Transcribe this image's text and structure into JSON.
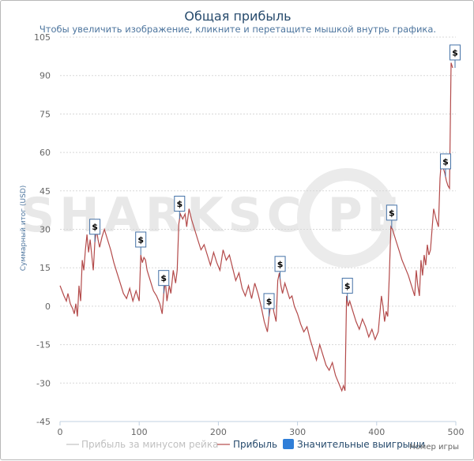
{
  "chart_data": {
    "type": "line",
    "title": "Общая прибыль",
    "subtitle": "Чтобы увеличить изображение, кликните и перетащите мышкой внутрь графика.",
    "ylabel": "Суммарный итог (USD)",
    "xlabel": "Номер игры",
    "xlim": [
      0,
      500
    ],
    "ylim": [
      -45,
      105
    ],
    "x_ticks": [
      0,
      100,
      200,
      300,
      400,
      500
    ],
    "y_ticks": [
      105,
      90,
      75,
      60,
      45,
      30,
      15,
      0,
      -15,
      -30,
      -45
    ],
    "grid": true,
    "legend_position": "bottom",
    "series": [
      {
        "name": "Прибыль",
        "color": "#b34a4a",
        "points": [
          [
            0,
            8
          ],
          [
            5,
            4
          ],
          [
            8,
            2
          ],
          [
            10,
            5
          ],
          [
            13,
            1
          ],
          [
            16,
            -1
          ],
          [
            18,
            -3
          ],
          [
            20,
            1
          ],
          [
            22,
            -4
          ],
          [
            24,
            8
          ],
          [
            26,
            2
          ],
          [
            28,
            18
          ],
          [
            30,
            14
          ],
          [
            32,
            22
          ],
          [
            34,
            28
          ],
          [
            36,
            21
          ],
          [
            38,
            26
          ],
          [
            40,
            20
          ],
          [
            42,
            14
          ],
          [
            44,
            25
          ],
          [
            46,
            30
          ],
          [
            48,
            26
          ],
          [
            50,
            23
          ],
          [
            53,
            27
          ],
          [
            56,
            30
          ],
          [
            60,
            26
          ],
          [
            64,
            22
          ],
          [
            68,
            17
          ],
          [
            72,
            13
          ],
          [
            76,
            9
          ],
          [
            80,
            5
          ],
          [
            84,
            3
          ],
          [
            88,
            7
          ],
          [
            92,
            2
          ],
          [
            96,
            6
          ],
          [
            100,
            2
          ],
          [
            102,
            20
          ],
          [
            104,
            17
          ],
          [
            106,
            19
          ],
          [
            108,
            18
          ],
          [
            110,
            14
          ],
          [
            114,
            10
          ],
          [
            118,
            6
          ],
          [
            122,
            4
          ],
          [
            126,
            1
          ],
          [
            129,
            -3
          ],
          [
            131,
            5
          ],
          [
            133,
            10
          ],
          [
            135,
            2
          ],
          [
            138,
            8
          ],
          [
            140,
            5
          ],
          [
            143,
            14
          ],
          [
            146,
            9
          ],
          [
            148,
            14
          ],
          [
            150,
            32
          ],
          [
            152,
            36
          ],
          [
            155,
            34
          ],
          [
            158,
            36
          ],
          [
            160,
            31
          ],
          [
            163,
            38
          ],
          [
            166,
            34
          ],
          [
            170,
            30
          ],
          [
            174,
            26
          ],
          [
            178,
            22
          ],
          [
            182,
            24
          ],
          [
            186,
            20
          ],
          [
            190,
            16
          ],
          [
            194,
            21
          ],
          [
            198,
            17
          ],
          [
            202,
            14
          ],
          [
            206,
            22
          ],
          [
            210,
            18
          ],
          [
            214,
            20
          ],
          [
            218,
            15
          ],
          [
            222,
            10
          ],
          [
            226,
            13
          ],
          [
            230,
            7
          ],
          [
            234,
            4
          ],
          [
            238,
            8
          ],
          [
            242,
            3
          ],
          [
            246,
            9
          ],
          [
            250,
            5
          ],
          [
            254,
            0
          ],
          [
            258,
            -6
          ],
          [
            262,
            -10
          ],
          [
            264,
            -4
          ],
          [
            266,
            0
          ],
          [
            268,
            2
          ],
          [
            270,
            -2
          ],
          [
            273,
            -6
          ],
          [
            275,
            10
          ],
          [
            277,
            13
          ],
          [
            279,
            8
          ],
          [
            281,
            5
          ],
          [
            284,
            9
          ],
          [
            287,
            6
          ],
          [
            290,
            3
          ],
          [
            293,
            4
          ],
          [
            296,
            0
          ],
          [
            300,
            -3
          ],
          [
            304,
            -7
          ],
          [
            308,
            -10
          ],
          [
            312,
            -8
          ],
          [
            316,
            -13
          ],
          [
            320,
            -17
          ],
          [
            324,
            -21
          ],
          [
            328,
            -15
          ],
          [
            332,
            -19
          ],
          [
            336,
            -23
          ],
          [
            340,
            -25
          ],
          [
            344,
            -22
          ],
          [
            348,
            -27
          ],
          [
            352,
            -30
          ],
          [
            356,
            -33
          ],
          [
            358,
            -31
          ],
          [
            360,
            -33
          ],
          [
            362,
            4
          ],
          [
            364,
            0
          ],
          [
            366,
            2
          ],
          [
            370,
            -2
          ],
          [
            374,
            -6
          ],
          [
            378,
            -9
          ],
          [
            382,
            -5
          ],
          [
            386,
            -8
          ],
          [
            390,
            -12
          ],
          [
            394,
            -9
          ],
          [
            398,
            -13
          ],
          [
            402,
            -10
          ],
          [
            406,
            4
          ],
          [
            408,
            0
          ],
          [
            410,
            -6
          ],
          [
            412,
            -2
          ],
          [
            414,
            -4
          ],
          [
            416,
            12
          ],
          [
            418,
            31
          ],
          [
            420,
            30
          ],
          [
            424,
            26
          ],
          [
            428,
            22
          ],
          [
            432,
            18
          ],
          [
            436,
            15
          ],
          [
            440,
            12
          ],
          [
            444,
            8
          ],
          [
            448,
            4
          ],
          [
            450,
            14
          ],
          [
            452,
            8
          ],
          [
            454,
            4
          ],
          [
            456,
            18
          ],
          [
            458,
            12
          ],
          [
            460,
            20
          ],
          [
            462,
            16
          ],
          [
            464,
            24
          ],
          [
            466,
            20
          ],
          [
            468,
            22
          ],
          [
            470,
            30
          ],
          [
            472,
            38
          ],
          [
            475,
            34
          ],
          [
            478,
            31
          ],
          [
            480,
            50
          ],
          [
            482,
            58
          ],
          [
            484,
            54
          ],
          [
            486,
            52
          ],
          [
            488,
            49
          ],
          [
            490,
            47
          ],
          [
            492,
            46
          ],
          [
            494,
            95
          ],
          [
            496,
            93
          ]
        ]
      },
      {
        "name": "Значительные выигрыши",
        "type": "flags",
        "flag_label": "$",
        "x": [
          44,
          102,
          131,
          151,
          264,
          278,
          363,
          419,
          487,
          499
        ]
      }
    ],
    "legend": [
      {
        "label": "Прибыль за минусом рейка",
        "active": false,
        "color": "#c0c0c0"
      },
      {
        "label": "Прибыль",
        "active": true,
        "color": "#b34a4a"
      },
      {
        "label": "Значительные выигрыши",
        "active": true,
        "color": "#2f7ed8"
      }
    ]
  },
  "watermark": {
    "text": "SHARKSC PE"
  }
}
